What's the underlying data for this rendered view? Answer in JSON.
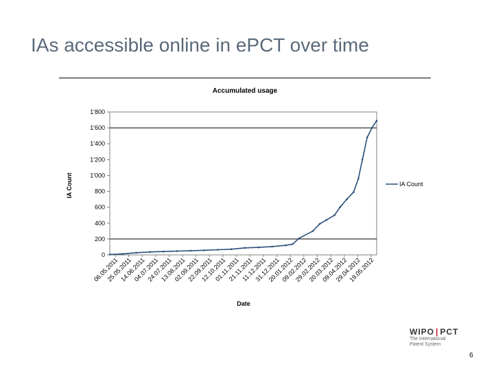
{
  "slide": {
    "title": "IAs accessible online in ePCT over time",
    "page_number": "6"
  },
  "logo": {
    "left": "WIPO",
    "separator": "|",
    "right": "PCT",
    "subtitle_line1": "The International",
    "subtitle_line2": "Patent System"
  },
  "colors": {
    "series": "#2a4e7a",
    "grid": "#000000",
    "title_text": "#5a6a7a"
  },
  "chart_data": {
    "type": "line",
    "title": "Accumulated usage",
    "xlabel": "Date",
    "ylabel": "IA Count",
    "ylim": [
      0,
      1800
    ],
    "yticks": [
      0,
      200,
      400,
      600,
      800,
      1000,
      1200,
      1400,
      1600,
      1800
    ],
    "ytick_labels": [
      "0",
      "200",
      "400",
      "600",
      "800",
      "1'000",
      "1'200",
      "1'400",
      "1'600",
      "1'800"
    ],
    "gridlines_at": [
      200,
      1600
    ],
    "legend_position": "right",
    "xlim": [
      "2011-05-06",
      "2012-06-02"
    ],
    "xtick_labels": [
      "06.05.2011",
      "25.05.2011",
      "14.06.2011",
      "04.07.2011",
      "24.07.2011",
      "13.08.2011",
      "02.09.2011",
      "22.09.2011",
      "12.10.2011",
      "01.11.2011",
      "21.11.2011",
      "11.12.2011",
      "31.12.2011",
      "20.01.2012",
      "09.02.2012",
      "29.02.2012",
      "20.03.2012",
      "09.04.2012",
      "29.04.2012",
      "19.05.2012"
    ],
    "series": [
      {
        "name": "IA Count",
        "points": [
          [
            "2011-05-06",
            5
          ],
          [
            "2011-05-25",
            12
          ],
          [
            "2011-06-14",
            28
          ],
          [
            "2011-07-04",
            36
          ],
          [
            "2011-07-24",
            42
          ],
          [
            "2011-08-13",
            48
          ],
          [
            "2011-09-02",
            53
          ],
          [
            "2011-09-22",
            58
          ],
          [
            "2011-10-12",
            65
          ],
          [
            "2011-11-01",
            72
          ],
          [
            "2011-11-21",
            88
          ],
          [
            "2011-12-11",
            94
          ],
          [
            "2011-12-31",
            105
          ],
          [
            "2012-01-20",
            120
          ],
          [
            "2012-01-30",
            135
          ],
          [
            "2012-02-09",
            210
          ],
          [
            "2012-02-29",
            300
          ],
          [
            "2012-03-10",
            390
          ],
          [
            "2012-03-20",
            440
          ],
          [
            "2012-04-01",
            500
          ],
          [
            "2012-04-09",
            600
          ],
          [
            "2012-04-19",
            700
          ],
          [
            "2012-04-29",
            790
          ],
          [
            "2012-05-06",
            960
          ],
          [
            "2012-05-12",
            1200
          ],
          [
            "2012-05-19",
            1480
          ],
          [
            "2012-05-26",
            1600
          ],
          [
            "2012-06-02",
            1690
          ]
        ]
      }
    ]
  }
}
